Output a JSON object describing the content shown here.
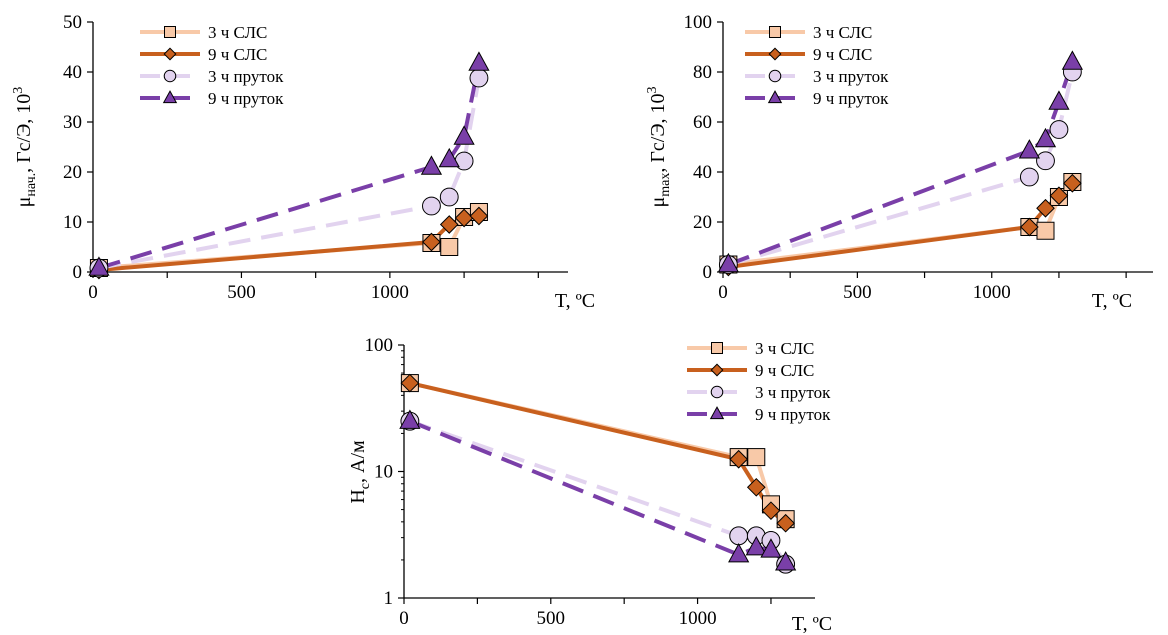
{
  "colors": {
    "s3_slc": "#F8C9A8",
    "s9_slc": "#C8601E",
    "s3_rod": "#E2D3EF",
    "s9_rod": "#7A3FA8"
  },
  "series_meta": [
    {
      "key": "s3_slc",
      "name": "3 ч СЛС",
      "marker": "square",
      "dash": false,
      "color": "#F8C9A8",
      "fill": "#F8C9A8"
    },
    {
      "key": "s9_slc",
      "name": "9 ч СЛС",
      "marker": "diamond",
      "dash": false,
      "color": "#C8601E",
      "fill": "#C8601E"
    },
    {
      "key": "s3_rod",
      "name": "3 ч пруток",
      "marker": "circle",
      "dash": true,
      "color": "#E2D3EF",
      "fill": "#E2D3EF"
    },
    {
      "key": "s9_rod",
      "name": "9 ч пруток",
      "marker": "triangle",
      "dash": true,
      "color": "#7A3FA8",
      "fill": "#7A3FA8"
    }
  ],
  "chart_data": [
    {
      "id": "mu_init",
      "type": "line",
      "xlabel": "T, ºC",
      "ylabel_main": "μ",
      "ylabel_sub": "нач.",
      "ylabel_rest": ", Гс/Э, 10",
      "ylabel_sup": "3",
      "xlim": [
        0,
        1600
      ],
      "ylim": [
        0,
        50
      ],
      "xticks": [
        0,
        500,
        1000
      ],
      "yticks": [
        0,
        10,
        20,
        30,
        40,
        50
      ],
      "log": false,
      "series": [
        {
          "key": "s3_slc",
          "name": "3 ч СЛС",
          "x": [
            20,
            1140,
            1200,
            1250,
            1300
          ],
          "y": [
            0.8,
            5.8,
            5.0,
            11.0,
            12.0
          ]
        },
        {
          "key": "s9_slc",
          "name": "9 ч СЛС",
          "x": [
            20,
            1140,
            1200,
            1250,
            1300
          ],
          "y": [
            0.4,
            6.0,
            9.5,
            10.8,
            11.2
          ]
        },
        {
          "key": "s3_rod",
          "name": "3 ч пруток",
          "x": [
            20,
            1140,
            1200,
            1250,
            1300
          ],
          "y": [
            0.8,
            13.2,
            15.0,
            22.2,
            38.8
          ]
        },
        {
          "key": "s9_rod",
          "name": "9 ч пруток",
          "x": [
            20,
            1140,
            1200,
            1250,
            1300
          ],
          "y": [
            0.8,
            21.0,
            22.5,
            27.0,
            41.8
          ]
        }
      ]
    },
    {
      "id": "mu_max",
      "type": "line",
      "xlabel": "T, ºC",
      "ylabel_main": "μ",
      "ylabel_sub": "max",
      "ylabel_rest": ", Гс/Э, 10",
      "ylabel_sup": "3",
      "xlim": [
        0,
        1600
      ],
      "ylim": [
        0,
        100
      ],
      "xticks": [
        0,
        500,
        1000
      ],
      "yticks": [
        0,
        20,
        40,
        60,
        80,
        100
      ],
      "log": false,
      "series": [
        {
          "key": "s3_slc",
          "name": "3 ч СЛС",
          "x": [
            20,
            1140,
            1200,
            1250,
            1300
          ],
          "y": [
            3.0,
            18.0,
            16.5,
            30.0,
            36.0
          ]
        },
        {
          "key": "s9_slc",
          "name": "9 ч СЛС",
          "x": [
            20,
            1140,
            1200,
            1250,
            1300
          ],
          "y": [
            2.0,
            18.0,
            25.5,
            30.5,
            35.5
          ]
        },
        {
          "key": "s3_rod",
          "name": "3 ч пруток",
          "x": [
            20,
            1140,
            1200,
            1250,
            1300
          ],
          "y": [
            3.0,
            38.0,
            44.5,
            57.0,
            80.0
          ]
        },
        {
          "key": "s9_rod",
          "name": "9 ч пруток",
          "x": [
            20,
            1140,
            1200,
            1250,
            1300
          ],
          "y": [
            3.0,
            48.5,
            53.0,
            68.0,
            84.0
          ]
        }
      ]
    },
    {
      "id": "hc",
      "type": "line",
      "xlabel": "T, ºC",
      "ylabel_main": "H",
      "ylabel_sub": "c",
      "ylabel_rest": ", А/м",
      "ylabel_sup": "",
      "xlim": [
        0,
        1400
      ],
      "ylim": [
        1,
        100
      ],
      "xticks": [
        0,
        500,
        1000
      ],
      "yticks": [
        1,
        10,
        100
      ],
      "log": true,
      "series": [
        {
          "key": "s3_slc",
          "name": "3 ч СЛС",
          "x": [
            20,
            1140,
            1200,
            1250,
            1300
          ],
          "y": [
            50,
            13,
            13,
            5.5,
            4.2
          ]
        },
        {
          "key": "s9_slc",
          "name": "9 ч СЛС",
          "x": [
            20,
            1140,
            1200,
            1250,
            1300
          ],
          "y": [
            50,
            12.5,
            7.5,
            4.9,
            3.9
          ]
        },
        {
          "key": "s3_rod",
          "name": "3 ч пруток",
          "x": [
            20,
            1140,
            1200,
            1250,
            1300
          ],
          "y": [
            25,
            3.1,
            3.1,
            2.85,
            1.85
          ]
        },
        {
          "key": "s9_rod",
          "name": "9 ч пруток",
          "x": [
            20,
            1140,
            1200,
            1250,
            1300
          ],
          "y": [
            25,
            2.2,
            2.5,
            2.4,
            1.9
          ]
        }
      ]
    }
  ]
}
